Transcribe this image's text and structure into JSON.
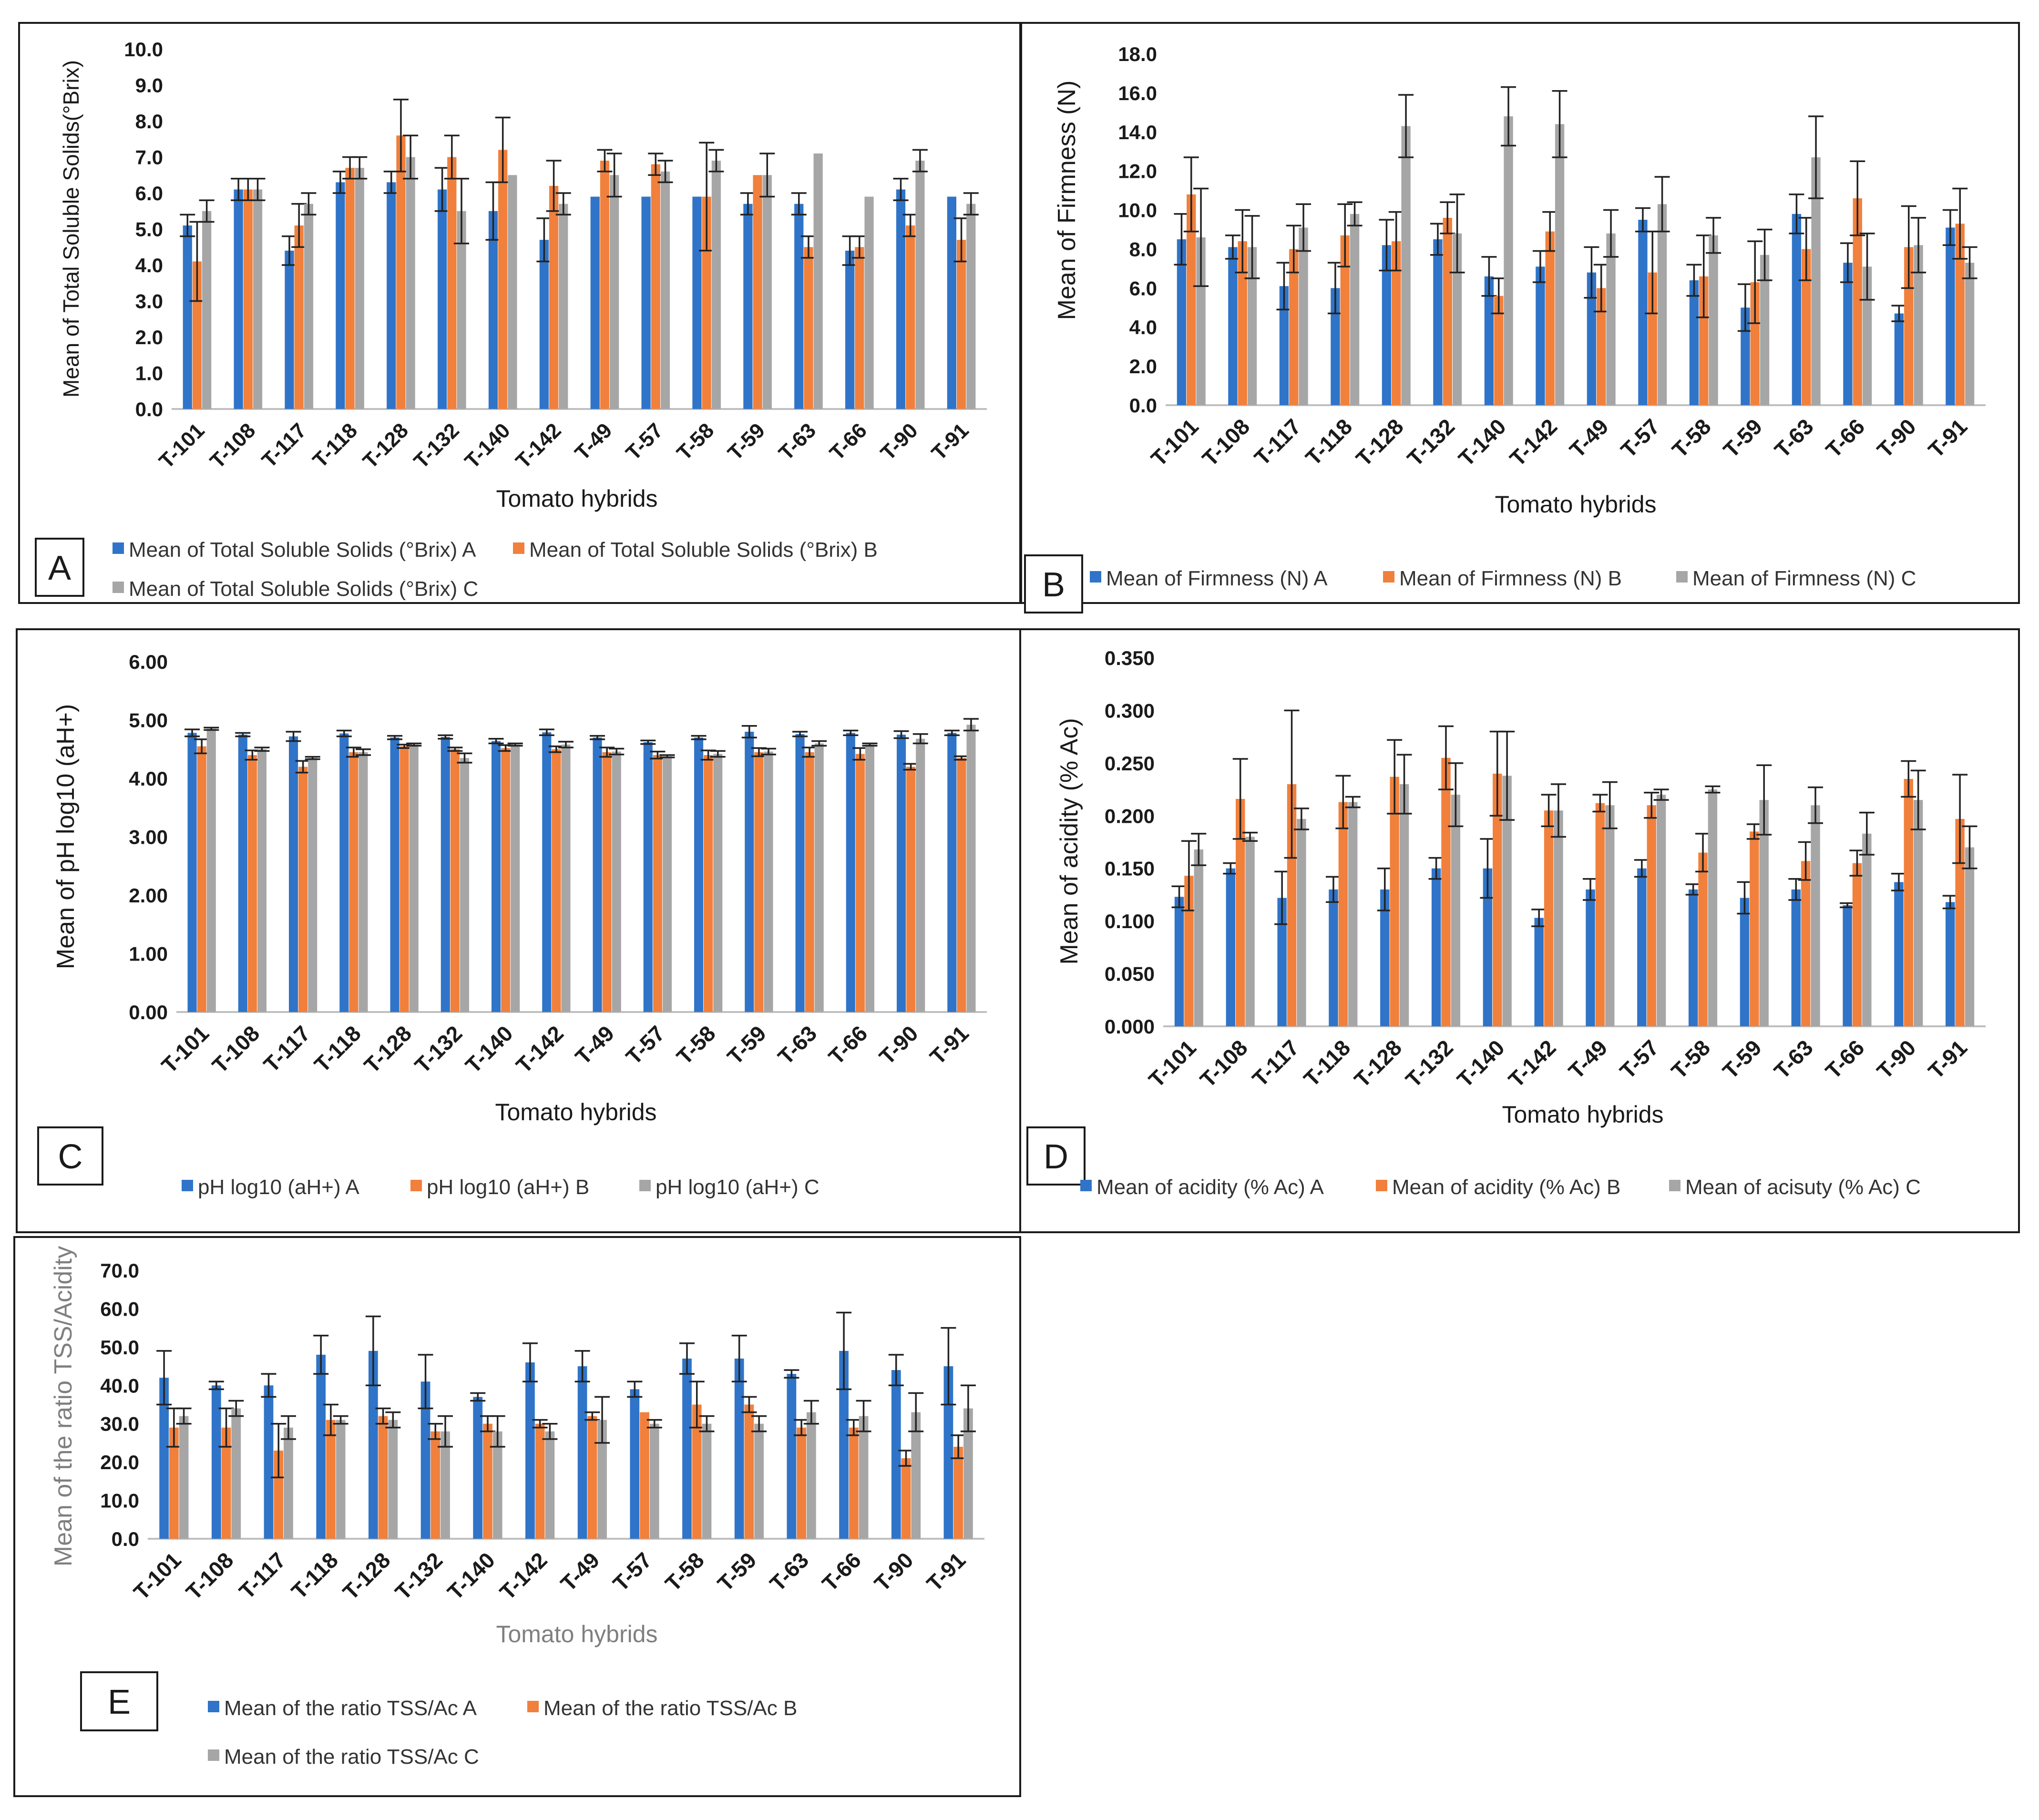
{
  "colors": {
    "A": "#2f74c8",
    "B": "#f0803c",
    "C": "#a6a6a6",
    "axis": "#bfbfbf",
    "ink": "#1a1a1a",
    "err": "#222222"
  },
  "chart_data": [
    {
      "id": "A",
      "type": "bar",
      "panel_label": "A",
      "title": "",
      "ylabel": "Mean of Total Soluble Solids(°Brix)",
      "xlabel": "Tomato hybrids",
      "ylim": [
        0,
        10
      ],
      "yticks": [
        "0.0",
        "1.0",
        "2.0",
        "3.0",
        "4.0",
        "5.0",
        "6.0",
        "7.0",
        "8.0",
        "9.0",
        "10.0"
      ],
      "categories": [
        "T-101",
        "T-108",
        "T-117",
        "T-118",
        "T-128",
        "T-132",
        "T-140",
        "T-142",
        "T-49",
        "T-57",
        "T-58",
        "T-59",
        "T-63",
        "T-66",
        "T-90",
        "T-91"
      ],
      "series": [
        {
          "name": "Mean of Total Soluble Solids (°Brix) A",
          "values": [
            5.1,
            6.1,
            4.4,
            6.3,
            6.3,
            6.1,
            5.5,
            4.7,
            5.9,
            5.9,
            5.9,
            5.7,
            5.7,
            4.4,
            6.1,
            5.9
          ],
          "errors": [
            0.3,
            0.3,
            0.4,
            0.3,
            0.3,
            0.6,
            0.8,
            0.6,
            0.0,
            0.0,
            0.0,
            0.3,
            0.3,
            0.4,
            0.3,
            0.0
          ]
        },
        {
          "name": "Mean of Total Soluble Solids (°Brix) B",
          "values": [
            4.1,
            6.1,
            5.1,
            6.7,
            7.6,
            7.0,
            7.2,
            6.2,
            6.9,
            6.8,
            5.9,
            6.5,
            4.5,
            4.5,
            5.1,
            4.7
          ],
          "errors": [
            1.1,
            0.3,
            0.6,
            0.3,
            1.0,
            0.6,
            0.9,
            0.7,
            0.3,
            0.3,
            1.5,
            0.0,
            0.3,
            0.3,
            0.3,
            0.6
          ]
        },
        {
          "name": "Mean of Total Soluble Solids (°Brix) C",
          "values": [
            5.5,
            6.1,
            5.7,
            6.7,
            7.0,
            5.5,
            6.5,
            5.7,
            6.5,
            6.6,
            6.9,
            6.5,
            7.1,
            5.9,
            6.9,
            5.7
          ],
          "errors": [
            0.3,
            0.3,
            0.3,
            0.3,
            0.6,
            0.9,
            0.0,
            0.3,
            0.6,
            0.3,
            0.3,
            0.6,
            0.0,
            0.0,
            0.3,
            0.3
          ]
        }
      ]
    },
    {
      "id": "B",
      "type": "bar",
      "panel_label": "B",
      "title": "",
      "ylabel": "Mean of Firmness (N)",
      "xlabel": "Tomato  hybrids",
      "ylim": [
        0,
        18
      ],
      "yticks": [
        "0.0",
        "2.0",
        "4.0",
        "6.0",
        "8.0",
        "10.0",
        "12.0",
        "14.0",
        "16.0",
        "18.0"
      ],
      "categories": [
        "T-101",
        "T-108",
        "T-117",
        "T-118",
        "T-128",
        "T-132",
        "T-140",
        "T-142",
        "T-49",
        "T-57",
        "T-58",
        "T-59",
        "T-63",
        "T-66",
        "T-90",
        "T-91"
      ],
      "series": [
        {
          "name": "Mean of Firmness (N) A",
          "values": [
            8.5,
            8.1,
            6.1,
            6.0,
            8.2,
            8.5,
            6.6,
            7.1,
            6.8,
            9.5,
            6.4,
            5.0,
            9.8,
            7.3,
            4.7,
            9.1
          ],
          "errors": [
            1.3,
            0.6,
            1.2,
            1.3,
            1.3,
            0.8,
            1.0,
            0.8,
            1.3,
            0.6,
            0.8,
            1.2,
            1.0,
            1.0,
            0.4,
            0.9
          ]
        },
        {
          "name": "Mean of  Firmness (N) B",
          "values": [
            10.8,
            8.4,
            8.0,
            8.7,
            8.4,
            9.6,
            5.6,
            8.9,
            6.0,
            6.8,
            6.6,
            6.3,
            8.0,
            10.6,
            8.1,
            9.3
          ],
          "errors": [
            1.9,
            1.6,
            1.2,
            1.6,
            1.5,
            0.8,
            0.9,
            1.0,
            1.2,
            2.1,
            2.1,
            2.1,
            1.6,
            1.9,
            2.1,
            1.8
          ]
        },
        {
          "name": "Mean of Firmness (N) C",
          "values": [
            8.6,
            8.1,
            9.1,
            9.8,
            14.3,
            8.8,
            14.8,
            14.4,
            8.8,
            10.3,
            8.7,
            7.7,
            12.7,
            7.1,
            8.2,
            7.3
          ],
          "errors": [
            2.5,
            1.6,
            1.2,
            0.6,
            1.6,
            2.0,
            1.5,
            1.7,
            1.2,
            1.4,
            0.9,
            1.3,
            2.1,
            1.7,
            1.4,
            0.8
          ]
        }
      ]
    },
    {
      "id": "C",
      "type": "bar",
      "panel_label": "C",
      "title": "",
      "ylabel": "Mean of  pH log10 (aH+)",
      "xlabel": "Tomato hybrids",
      "ylim": [
        0,
        6
      ],
      "yticks": [
        "0.00",
        "1.00",
        "2.00",
        "3.00",
        "4.00",
        "5.00",
        "6.00"
      ],
      "categories": [
        "T-101",
        "T-108",
        "T-117",
        "T-118",
        "T-128",
        "T-132",
        "T-140",
        "T-142",
        "T-49",
        "T-57",
        "T-58",
        "T-59",
        "T-63",
        "T-66",
        "T-90",
        "T-91"
      ],
      "series": [
        {
          "name": "pH log10 (aH+) A",
          "values": [
            4.78,
            4.75,
            4.72,
            4.77,
            4.7,
            4.71,
            4.64,
            4.79,
            4.7,
            4.62,
            4.7,
            4.8,
            4.76,
            4.78,
            4.75,
            4.78
          ],
          "errors": [
            0.06,
            0.03,
            0.08,
            0.05,
            0.03,
            0.03,
            0.04,
            0.05,
            0.03,
            0.03,
            0.03,
            0.1,
            0.04,
            0.04,
            0.06,
            0.04
          ]
        },
        {
          "name": "pH log10 (aH+) B",
          "values": [
            4.55,
            4.4,
            4.2,
            4.45,
            4.55,
            4.5,
            4.52,
            4.5,
            4.45,
            4.4,
            4.4,
            4.45,
            4.45,
            4.42,
            4.2,
            4.35
          ],
          "errors": [
            0.12,
            0.08,
            0.1,
            0.08,
            0.03,
            0.03,
            0.05,
            0.05,
            0.08,
            0.06,
            0.08,
            0.07,
            0.08,
            0.1,
            0.05,
            0.03
          ]
        },
        {
          "name": "pH log10 (aH+) C",
          "values": [
            4.85,
            4.5,
            4.35,
            4.45,
            4.58,
            4.35,
            4.58,
            4.58,
            4.46,
            4.38,
            4.42,
            4.46,
            4.6,
            4.58,
            4.68,
            4.92
          ],
          "errors": [
            0.02,
            0.03,
            0.02,
            0.05,
            0.02,
            0.08,
            0.02,
            0.05,
            0.05,
            0.02,
            0.05,
            0.05,
            0.04,
            0.02,
            0.08,
            0.1
          ]
        }
      ]
    },
    {
      "id": "D",
      "type": "bar",
      "panel_label": "D",
      "title": "",
      "ylabel": "Mean of acidity (% Ac)",
      "xlabel": "Tomato hybrids",
      "ylim": [
        0,
        0.35
      ],
      "yticks": [
        "0.000",
        "0.050",
        "0.100",
        "0.150",
        "0.200",
        "0.250",
        "0.300",
        "0.350"
      ],
      "categories": [
        "T-101",
        "T-108",
        "T-117",
        "T-118",
        "T-128",
        "T-132",
        "T-140",
        "T-142",
        "T-49",
        "T-57",
        "T-58",
        "T-59",
        "T-63",
        "T-66",
        "T-90",
        "T-91"
      ],
      "series": [
        {
          "name": "Mean of acidity (% Ac) A",
          "values": [
            0.123,
            0.15,
            0.122,
            0.13,
            0.13,
            0.15,
            0.15,
            0.103,
            0.13,
            0.15,
            0.13,
            0.122,
            0.13,
            0.115,
            0.137,
            0.118
          ],
          "errors": [
            0.01,
            0.005,
            0.025,
            0.012,
            0.02,
            0.01,
            0.028,
            0.008,
            0.01,
            0.008,
            0.005,
            0.015,
            0.01,
            0.002,
            0.008,
            0.006
          ]
        },
        {
          "name": "Mean of acidity (% Ac) B",
          "values": [
            0.143,
            0.216,
            0.23,
            0.213,
            0.237,
            0.255,
            0.24,
            0.205,
            0.212,
            0.21,
            0.165,
            0.185,
            0.157,
            0.155,
            0.235,
            0.197
          ],
          "errors": [
            0.033,
            0.038,
            0.07,
            0.025,
            0.035,
            0.03,
            0.04,
            0.015,
            0.008,
            0.012,
            0.018,
            0.007,
            0.018,
            0.012,
            0.017,
            0.042
          ]
        },
        {
          "name": "Mean of acisuty (% Ac) C",
          "values": [
            0.168,
            0.18,
            0.197,
            0.213,
            0.23,
            0.22,
            0.238,
            0.205,
            0.21,
            0.22,
            0.225,
            0.215,
            0.21,
            0.183,
            0.215,
            0.17
          ],
          "errors": [
            0.015,
            0.004,
            0.01,
            0.005,
            0.028,
            0.03,
            0.042,
            0.025,
            0.022,
            0.005,
            0.003,
            0.033,
            0.017,
            0.02,
            0.028,
            0.02
          ]
        }
      ]
    },
    {
      "id": "E",
      "type": "bar",
      "panel_label": "E",
      "title": "",
      "ylabel": "Mean of the ratio  TSS/Acidity",
      "xlabel": "Tomato hybrids",
      "ylim": [
        0,
        70
      ],
      "yticks": [
        "0.0",
        "10.0",
        "20.0",
        "30.0",
        "40.0",
        "50.0",
        "60.0",
        "70.0"
      ],
      "categories": [
        "T-101",
        "T-108",
        "T-117",
        "T-118",
        "T-128",
        "T-132",
        "T-140",
        "T-142",
        "T-49",
        "T-57",
        "T-58",
        "T-59",
        "T-63",
        "T-66",
        "T-90",
        "T-91"
      ],
      "series": [
        {
          "name": "Mean of the ratio TSS/Ac A",
          "values": [
            42,
            40,
            40,
            48,
            49,
            41,
            37,
            46,
            45,
            39,
            47,
            47,
            43,
            49,
            44,
            45
          ],
          "errors": [
            7,
            1,
            3,
            5,
            9,
            7,
            1,
            5,
            4,
            2,
            4,
            6,
            1,
            10,
            4,
            10
          ]
        },
        {
          "name": "Mean of the ratio TSS/Ac B",
          "values": [
            29,
            29,
            23,
            31,
            32,
            28,
            30,
            30,
            32,
            33,
            35,
            35,
            29,
            29,
            21,
            24
          ],
          "errors": [
            5,
            5,
            7,
            4,
            2,
            2,
            2,
            1,
            1,
            0,
            6,
            2,
            2,
            2,
            2,
            3
          ]
        },
        {
          "name": "Mean of the ratio TSS/Ac C",
          "values": [
            32,
            34,
            29,
            31,
            31,
            28,
            28,
            28,
            31,
            30,
            30,
            30,
            33,
            32,
            33,
            34
          ],
          "errors": [
            2,
            2,
            3,
            1,
            2,
            4,
            4,
            2,
            6,
            1,
            2,
            2,
            3,
            4,
            5,
            6
          ]
        }
      ]
    }
  ]
}
